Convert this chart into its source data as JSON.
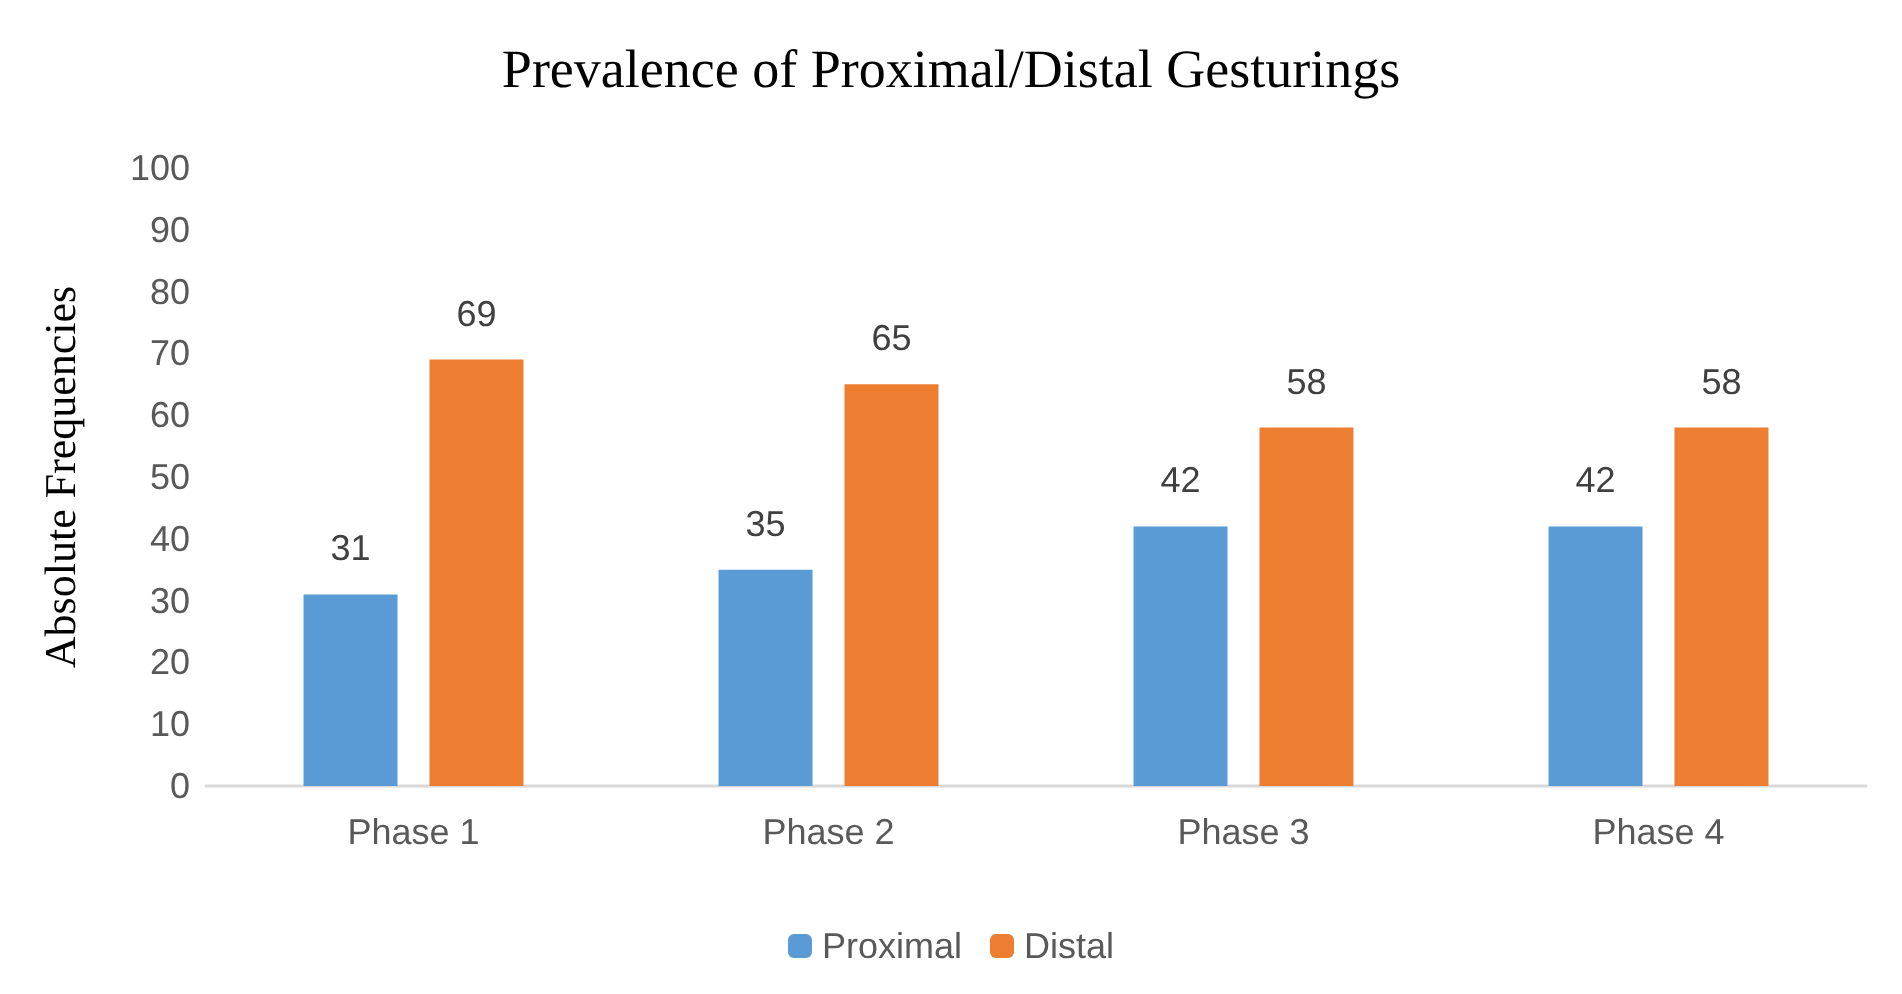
{
  "chart_data": {
    "type": "bar",
    "title": "Prevalence of Proximal/Distal Gesturings",
    "ylabel": "Absolute Frequencies",
    "categories": [
      "Phase 1",
      "Phase 2",
      "Phase 3",
      "Phase 4"
    ],
    "series": [
      {
        "name": "Proximal",
        "color": "#5b9bd5",
        "values": [
          31,
          35,
          42,
          42
        ]
      },
      {
        "name": "Distal",
        "color": "#ed7d31",
        "values": [
          69,
          65,
          58,
          58
        ]
      }
    ],
    "ylim": [
      0,
      100
    ],
    "yticks": [
      0,
      10,
      20,
      30,
      40,
      50,
      60,
      70,
      80,
      90,
      100
    ],
    "grid": false,
    "legend": "bottom",
    "data_labels": true
  }
}
